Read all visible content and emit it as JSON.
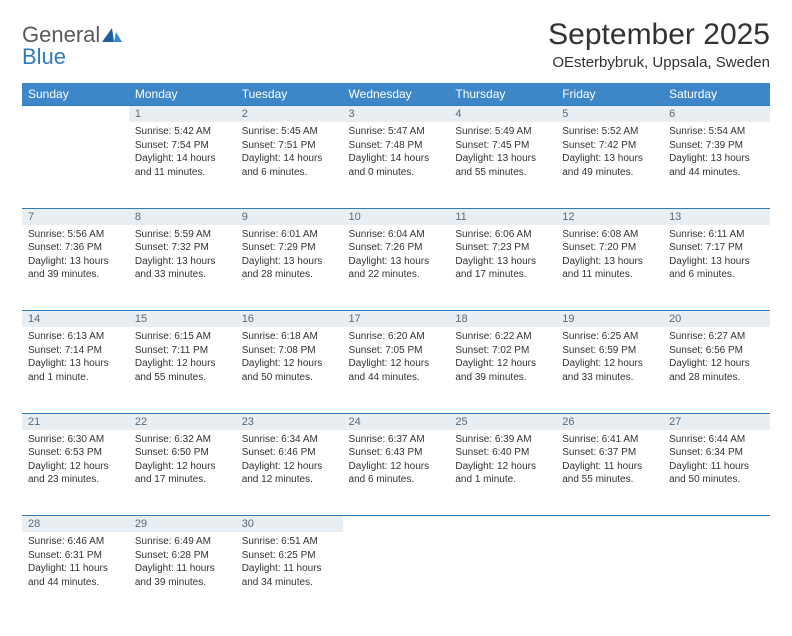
{
  "logo": {
    "word1": "General",
    "word2": "Blue"
  },
  "title": "September 2025",
  "location": "OEsterbybruk, Uppsala, Sweden",
  "colors": {
    "header_bg": "#3d87c9",
    "header_text": "#ffffff",
    "daynum_bg": "#e9eef2",
    "daynum_text": "#5a6b78",
    "row_border": "#2f7bbf",
    "body_text": "#333333",
    "logo_gray": "#5a5a5a",
    "logo_blue": "#2f7bbf"
  },
  "day_headers": [
    "Sunday",
    "Monday",
    "Tuesday",
    "Wednesday",
    "Thursday",
    "Friday",
    "Saturday"
  ],
  "weeks": [
    [
      null,
      {
        "n": "1",
        "sr": "5:42 AM",
        "ss": "7:54 PM",
        "d": "14 hours and 11 minutes."
      },
      {
        "n": "2",
        "sr": "5:45 AM",
        "ss": "7:51 PM",
        "d": "14 hours and 6 minutes."
      },
      {
        "n": "3",
        "sr": "5:47 AM",
        "ss": "7:48 PM",
        "d": "14 hours and 0 minutes."
      },
      {
        "n": "4",
        "sr": "5:49 AM",
        "ss": "7:45 PM",
        "d": "13 hours and 55 minutes."
      },
      {
        "n": "5",
        "sr": "5:52 AM",
        "ss": "7:42 PM",
        "d": "13 hours and 49 minutes."
      },
      {
        "n": "6",
        "sr": "5:54 AM",
        "ss": "7:39 PM",
        "d": "13 hours and 44 minutes."
      }
    ],
    [
      {
        "n": "7",
        "sr": "5:56 AM",
        "ss": "7:36 PM",
        "d": "13 hours and 39 minutes."
      },
      {
        "n": "8",
        "sr": "5:59 AM",
        "ss": "7:32 PM",
        "d": "13 hours and 33 minutes."
      },
      {
        "n": "9",
        "sr": "6:01 AM",
        "ss": "7:29 PM",
        "d": "13 hours and 28 minutes."
      },
      {
        "n": "10",
        "sr": "6:04 AM",
        "ss": "7:26 PM",
        "d": "13 hours and 22 minutes."
      },
      {
        "n": "11",
        "sr": "6:06 AM",
        "ss": "7:23 PM",
        "d": "13 hours and 17 minutes."
      },
      {
        "n": "12",
        "sr": "6:08 AM",
        "ss": "7:20 PM",
        "d": "13 hours and 11 minutes."
      },
      {
        "n": "13",
        "sr": "6:11 AM",
        "ss": "7:17 PM",
        "d": "13 hours and 6 minutes."
      }
    ],
    [
      {
        "n": "14",
        "sr": "6:13 AM",
        "ss": "7:14 PM",
        "d": "13 hours and 1 minute."
      },
      {
        "n": "15",
        "sr": "6:15 AM",
        "ss": "7:11 PM",
        "d": "12 hours and 55 minutes."
      },
      {
        "n": "16",
        "sr": "6:18 AM",
        "ss": "7:08 PM",
        "d": "12 hours and 50 minutes."
      },
      {
        "n": "17",
        "sr": "6:20 AM",
        "ss": "7:05 PM",
        "d": "12 hours and 44 minutes."
      },
      {
        "n": "18",
        "sr": "6:22 AM",
        "ss": "7:02 PM",
        "d": "12 hours and 39 minutes."
      },
      {
        "n": "19",
        "sr": "6:25 AM",
        "ss": "6:59 PM",
        "d": "12 hours and 33 minutes."
      },
      {
        "n": "20",
        "sr": "6:27 AM",
        "ss": "6:56 PM",
        "d": "12 hours and 28 minutes."
      }
    ],
    [
      {
        "n": "21",
        "sr": "6:30 AM",
        "ss": "6:53 PM",
        "d": "12 hours and 23 minutes."
      },
      {
        "n": "22",
        "sr": "6:32 AM",
        "ss": "6:50 PM",
        "d": "12 hours and 17 minutes."
      },
      {
        "n": "23",
        "sr": "6:34 AM",
        "ss": "6:46 PM",
        "d": "12 hours and 12 minutes."
      },
      {
        "n": "24",
        "sr": "6:37 AM",
        "ss": "6:43 PM",
        "d": "12 hours and 6 minutes."
      },
      {
        "n": "25",
        "sr": "6:39 AM",
        "ss": "6:40 PM",
        "d": "12 hours and 1 minute."
      },
      {
        "n": "26",
        "sr": "6:41 AM",
        "ss": "6:37 PM",
        "d": "11 hours and 55 minutes."
      },
      {
        "n": "27",
        "sr": "6:44 AM",
        "ss": "6:34 PM",
        "d": "11 hours and 50 minutes."
      }
    ],
    [
      {
        "n": "28",
        "sr": "6:46 AM",
        "ss": "6:31 PM",
        "d": "11 hours and 44 minutes."
      },
      {
        "n": "29",
        "sr": "6:49 AM",
        "ss": "6:28 PM",
        "d": "11 hours and 39 minutes."
      },
      {
        "n": "30",
        "sr": "6:51 AM",
        "ss": "6:25 PM",
        "d": "11 hours and 34 minutes."
      },
      null,
      null,
      null,
      null
    ]
  ]
}
